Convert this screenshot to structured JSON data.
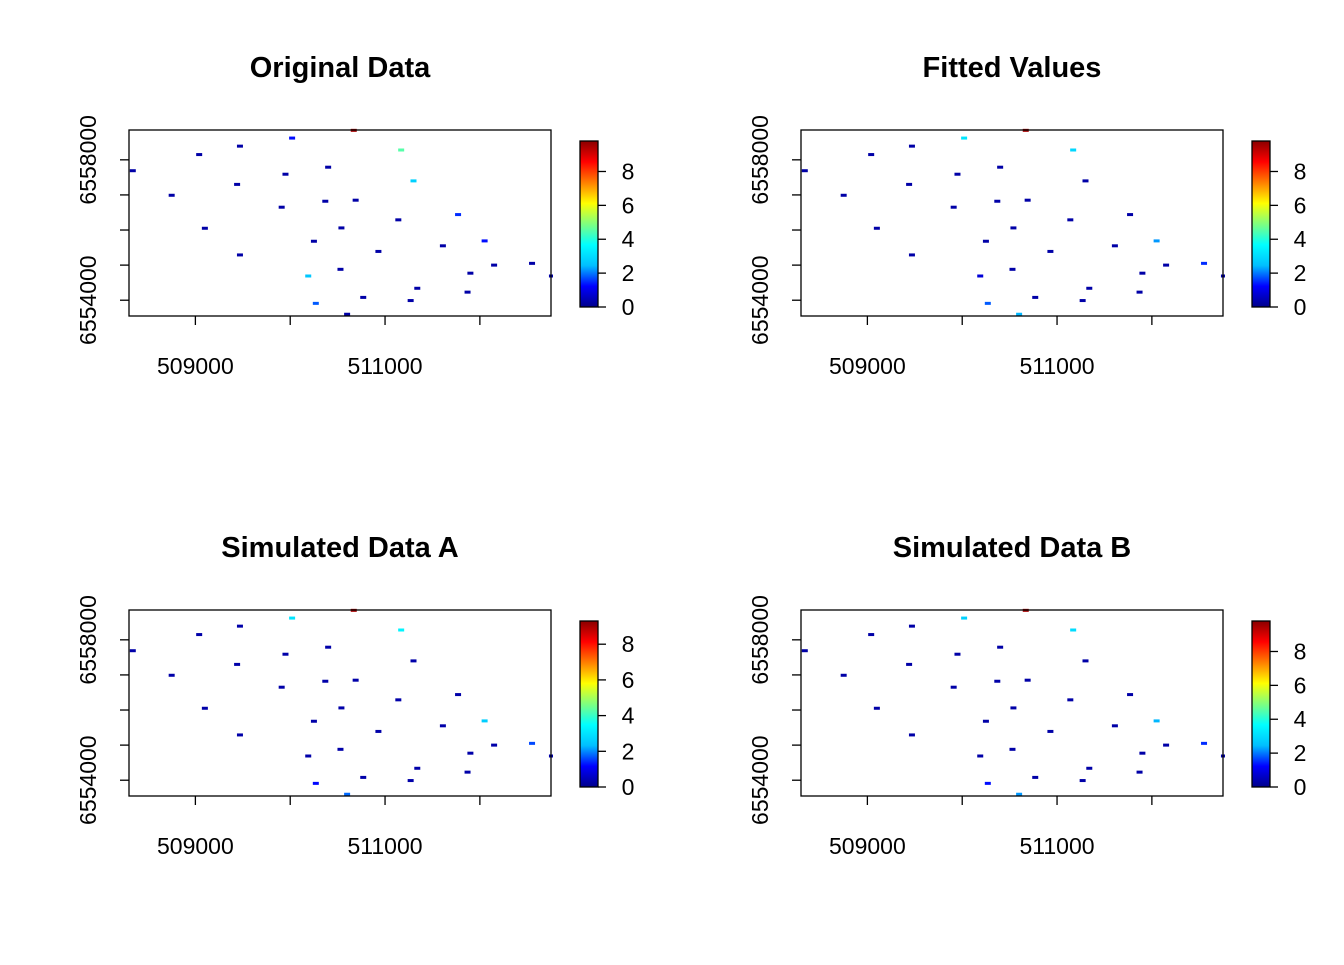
{
  "colorscale": [
    "#00008B",
    "#0000FF",
    "#00BFFF",
    "#00FFFF",
    "#7FFF7F",
    "#FFFF00",
    "#FF7F00",
    "#FF0000",
    "#8B0000"
  ],
  "chart_data": [
    {
      "type": "scatter",
      "title": "Original Data",
      "xlabel": "",
      "ylabel": "",
      "xlim": [
        508300,
        512750
      ],
      "ylim": [
        6553550,
        6558850
      ],
      "xticks": [
        {
          "value": 509000,
          "label": "509000"
        },
        {
          "value": 511000,
          "label": "511000"
        }
      ],
      "xminor": [
        509000,
        510000,
        511000,
        512000
      ],
      "yticks": [
        {
          "value": 6558000,
          "label": "6558000"
        },
        {
          "value": 6554000,
          "label": "6554000"
        }
      ],
      "yminor": [
        6554000,
        6555000,
        6556000,
        6557000,
        6558000
      ],
      "colorbar": {
        "min": 0,
        "max": 9.8,
        "ticks": [
          0,
          2,
          4,
          6,
          8
        ]
      },
      "points": [
        {
          "x": 508340,
          "y": 6557690,
          "v": 0.3
        },
        {
          "x": 508750,
          "y": 6556990,
          "v": 0.3
        },
        {
          "x": 509040,
          "y": 6558150,
          "v": 0.3
        },
        {
          "x": 509100,
          "y": 6556050,
          "v": 0.3
        },
        {
          "x": 509440,
          "y": 6557300,
          "v": 0.3
        },
        {
          "x": 509470,
          "y": 6558390,
          "v": 0.3
        },
        {
          "x": 509470,
          "y": 6555290,
          "v": 0.3
        },
        {
          "x": 509910,
          "y": 6556650,
          "v": 0.3
        },
        {
          "x": 509950,
          "y": 6557590,
          "v": 0.3
        },
        {
          "x": 510020,
          "y": 6558620,
          "v": 1.3
        },
        {
          "x": 510190,
          "y": 6554690,
          "v": 2.6
        },
        {
          "x": 510250,
          "y": 6555680,
          "v": 0.3
        },
        {
          "x": 510270,
          "y": 6553910,
          "v": 1.8
        },
        {
          "x": 510400,
          "y": 6557790,
          "v": 0.3
        },
        {
          "x": 510670,
          "y": 6558840,
          "v": 9.5
        },
        {
          "x": 510690,
          "y": 6556850,
          "v": 0.3
        },
        {
          "x": 510370,
          "y": 6556820,
          "v": 0.3
        },
        {
          "x": 510530,
          "y": 6554880,
          "v": 0.3
        },
        {
          "x": 510540,
          "y": 6556060,
          "v": 0.3
        },
        {
          "x": 510600,
          "y": 6553600,
          "v": 0.3
        },
        {
          "x": 510930,
          "y": 6555390,
          "v": 0.3
        },
        {
          "x": 510770,
          "y": 6554080,
          "v": 0.3
        },
        {
          "x": 511170,
          "y": 6558280,
          "v": 4.5
        },
        {
          "x": 511140,
          "y": 6556290,
          "v": 0.3
        },
        {
          "x": 511300,
          "y": 6557400,
          "v": 2.8
        },
        {
          "x": 511270,
          "y": 6553990,
          "v": 0.3
        },
        {
          "x": 511340,
          "y": 6554340,
          "v": 0.3
        },
        {
          "x": 511610,
          "y": 6555550,
          "v": 0.3
        },
        {
          "x": 511770,
          "y": 6556440,
          "v": 1.5
        },
        {
          "x": 511900,
          "y": 6554770,
          "v": 0.3
        },
        {
          "x": 511870,
          "y": 6554230,
          "v": 0.3
        },
        {
          "x": 512050,
          "y": 6555690,
          "v": 1.3
        },
        {
          "x": 512150,
          "y": 6555000,
          "v": 0.3
        },
        {
          "x": 512550,
          "y": 6555050,
          "v": 0.3
        },
        {
          "x": 512760,
          "y": 6554690,
          "v": 0.3
        }
      ]
    },
    {
      "type": "scatter",
      "title": "Fitted Values",
      "xlabel": "",
      "ylabel": "",
      "xlim": [
        508300,
        512750
      ],
      "ylim": [
        6553550,
        6558850
      ],
      "xticks": [
        {
          "value": 509000,
          "label": "509000"
        },
        {
          "value": 511000,
          "label": "511000"
        }
      ],
      "xminor": [
        509000,
        510000,
        511000,
        512000
      ],
      "yticks": [
        {
          "value": 6558000,
          "label": "6558000"
        },
        {
          "value": 6554000,
          "label": "6554000"
        }
      ],
      "yminor": [
        6554000,
        6555000,
        6556000,
        6557000,
        6558000
      ],
      "colorbar": {
        "min": 0,
        "max": 9.8,
        "ticks": [
          0,
          2,
          4,
          6,
          8
        ]
      },
      "points": [
        {
          "x": 508340,
          "y": 6557690,
          "v": 0.3
        },
        {
          "x": 508750,
          "y": 6556990,
          "v": 0.3
        },
        {
          "x": 509040,
          "y": 6558150,
          "v": 0.3
        },
        {
          "x": 509100,
          "y": 6556050,
          "v": 0.3
        },
        {
          "x": 509440,
          "y": 6557300,
          "v": 0.3
        },
        {
          "x": 509470,
          "y": 6558390,
          "v": 0.3
        },
        {
          "x": 509470,
          "y": 6555290,
          "v": 0.3
        },
        {
          "x": 509910,
          "y": 6556650,
          "v": 0.3
        },
        {
          "x": 509950,
          "y": 6557590,
          "v": 0.3
        },
        {
          "x": 510020,
          "y": 6558620,
          "v": 3.2
        },
        {
          "x": 510190,
          "y": 6554690,
          "v": 0.8
        },
        {
          "x": 510250,
          "y": 6555680,
          "v": 0.3
        },
        {
          "x": 510270,
          "y": 6553910,
          "v": 1.8
        },
        {
          "x": 510400,
          "y": 6557790,
          "v": 0.3
        },
        {
          "x": 510670,
          "y": 6558840,
          "v": 9.5
        },
        {
          "x": 510690,
          "y": 6556850,
          "v": 0.3
        },
        {
          "x": 510370,
          "y": 6556820,
          "v": 0.3
        },
        {
          "x": 510530,
          "y": 6554880,
          "v": 0.3
        },
        {
          "x": 510540,
          "y": 6556060,
          "v": 0.3
        },
        {
          "x": 510600,
          "y": 6553600,
          "v": 2.4
        },
        {
          "x": 510930,
          "y": 6555390,
          "v": 0.3
        },
        {
          "x": 510770,
          "y": 6554080,
          "v": 0.3
        },
        {
          "x": 511170,
          "y": 6558280,
          "v": 2.9
        },
        {
          "x": 511140,
          "y": 6556290,
          "v": 0.3
        },
        {
          "x": 511300,
          "y": 6557400,
          "v": 0.3
        },
        {
          "x": 511270,
          "y": 6553990,
          "v": 0.3
        },
        {
          "x": 511340,
          "y": 6554340,
          "v": 0.3
        },
        {
          "x": 511610,
          "y": 6555550,
          "v": 0.3
        },
        {
          "x": 511770,
          "y": 6556440,
          "v": 0.3
        },
        {
          "x": 511900,
          "y": 6554770,
          "v": 0.3
        },
        {
          "x": 511870,
          "y": 6554230,
          "v": 0.3
        },
        {
          "x": 512050,
          "y": 6555690,
          "v": 2.2
        },
        {
          "x": 512150,
          "y": 6555000,
          "v": 0.3
        },
        {
          "x": 512550,
          "y": 6555050,
          "v": 1.5
        },
        {
          "x": 512760,
          "y": 6554690,
          "v": 0.3
        }
      ]
    },
    {
      "type": "scatter",
      "title": "Simulated Data A",
      "xlabel": "",
      "ylabel": "",
      "xlim": [
        508300,
        512750
      ],
      "ylim": [
        6553550,
        6558850
      ],
      "xticks": [
        {
          "value": 509000,
          "label": "509000"
        },
        {
          "value": 511000,
          "label": "511000"
        }
      ],
      "xminor": [
        509000,
        510000,
        511000,
        512000
      ],
      "yticks": [
        {
          "value": 6558000,
          "label": "6558000"
        },
        {
          "value": 6554000,
          "label": "6554000"
        }
      ],
      "yminor": [
        6554000,
        6555000,
        6556000,
        6557000,
        6558000
      ],
      "colorbar": {
        "min": 0,
        "max": 9.3,
        "ticks": [
          0,
          2,
          4,
          6,
          8
        ]
      },
      "points": [
        {
          "x": 508340,
          "y": 6557690,
          "v": 0.3
        },
        {
          "x": 508750,
          "y": 6556990,
          "v": 0.3
        },
        {
          "x": 509040,
          "y": 6558150,
          "v": 0.3
        },
        {
          "x": 509100,
          "y": 6556050,
          "v": 0.3
        },
        {
          "x": 509440,
          "y": 6557300,
          "v": 0.3
        },
        {
          "x": 509470,
          "y": 6558390,
          "v": 0.3
        },
        {
          "x": 509470,
          "y": 6555290,
          "v": 0.3
        },
        {
          "x": 509910,
          "y": 6556650,
          "v": 0.3
        },
        {
          "x": 509950,
          "y": 6557590,
          "v": 0.3
        },
        {
          "x": 510020,
          "y": 6558620,
          "v": 3.0
        },
        {
          "x": 510190,
          "y": 6554690,
          "v": 0.3
        },
        {
          "x": 510250,
          "y": 6555680,
          "v": 0.3
        },
        {
          "x": 510270,
          "y": 6553910,
          "v": 1.2
        },
        {
          "x": 510400,
          "y": 6557790,
          "v": 0.3
        },
        {
          "x": 510670,
          "y": 6558840,
          "v": 9.0
        },
        {
          "x": 510690,
          "y": 6556850,
          "v": 0.3
        },
        {
          "x": 510370,
          "y": 6556820,
          "v": 0.3
        },
        {
          "x": 510530,
          "y": 6554880,
          "v": 0.3
        },
        {
          "x": 510540,
          "y": 6556060,
          "v": 0.3
        },
        {
          "x": 510600,
          "y": 6553600,
          "v": 1.8
        },
        {
          "x": 510930,
          "y": 6555390,
          "v": 0.3
        },
        {
          "x": 510770,
          "y": 6554080,
          "v": 0.3
        },
        {
          "x": 511170,
          "y": 6558280,
          "v": 3.3
        },
        {
          "x": 511140,
          "y": 6556290,
          "v": 0.3
        },
        {
          "x": 511300,
          "y": 6557400,
          "v": 0.3
        },
        {
          "x": 511270,
          "y": 6553990,
          "v": 0.3
        },
        {
          "x": 511340,
          "y": 6554340,
          "v": 0.3
        },
        {
          "x": 511610,
          "y": 6555550,
          "v": 0.3
        },
        {
          "x": 511770,
          "y": 6556440,
          "v": 0.3
        },
        {
          "x": 511900,
          "y": 6554770,
          "v": 0.3
        },
        {
          "x": 511870,
          "y": 6554230,
          "v": 0.3
        },
        {
          "x": 512050,
          "y": 6555690,
          "v": 2.6
        },
        {
          "x": 512150,
          "y": 6555000,
          "v": 0.3
        },
        {
          "x": 512550,
          "y": 6555050,
          "v": 1.6
        },
        {
          "x": 512760,
          "y": 6554690,
          "v": 0.3
        }
      ]
    },
    {
      "type": "scatter",
      "title": "Simulated Data B",
      "xlabel": "",
      "ylabel": "",
      "xlim": [
        508300,
        512750
      ],
      "ylim": [
        6553550,
        6558850
      ],
      "xticks": [
        {
          "value": 509000,
          "label": "509000"
        },
        {
          "value": 511000,
          "label": "511000"
        }
      ],
      "xminor": [
        509000,
        510000,
        511000,
        512000
      ],
      "yticks": [
        {
          "value": 6558000,
          "label": "6558000"
        },
        {
          "value": 6554000,
          "label": "6554000"
        }
      ],
      "yminor": [
        6554000,
        6555000,
        6556000,
        6557000,
        6558000
      ],
      "colorbar": {
        "min": 0,
        "max": 9.8,
        "ticks": [
          0,
          2,
          4,
          6,
          8
        ]
      },
      "points": [
        {
          "x": 508340,
          "y": 6557690,
          "v": 0.3
        },
        {
          "x": 508750,
          "y": 6556990,
          "v": 0.3
        },
        {
          "x": 509040,
          "y": 6558150,
          "v": 0.3
        },
        {
          "x": 509100,
          "y": 6556050,
          "v": 0.3
        },
        {
          "x": 509440,
          "y": 6557300,
          "v": 0.3
        },
        {
          "x": 509470,
          "y": 6558390,
          "v": 0.3
        },
        {
          "x": 509470,
          "y": 6555290,
          "v": 0.3
        },
        {
          "x": 509910,
          "y": 6556650,
          "v": 0.3
        },
        {
          "x": 509950,
          "y": 6557590,
          "v": 0.3
        },
        {
          "x": 510020,
          "y": 6558620,
          "v": 2.8
        },
        {
          "x": 510190,
          "y": 6554690,
          "v": 0.3
        },
        {
          "x": 510250,
          "y": 6555680,
          "v": 0.3
        },
        {
          "x": 510270,
          "y": 6553910,
          "v": 1.3
        },
        {
          "x": 510400,
          "y": 6557790,
          "v": 0.3
        },
        {
          "x": 510670,
          "y": 6558840,
          "v": 9.5
        },
        {
          "x": 510690,
          "y": 6556850,
          "v": 0.3
        },
        {
          "x": 510370,
          "y": 6556820,
          "v": 0.3
        },
        {
          "x": 510530,
          "y": 6554880,
          "v": 0.3
        },
        {
          "x": 510540,
          "y": 6556060,
          "v": 0.3
        },
        {
          "x": 510600,
          "y": 6553600,
          "v": 2.2
        },
        {
          "x": 510930,
          "y": 6555390,
          "v": 0.3
        },
        {
          "x": 510770,
          "y": 6554080,
          "v": 0.3
        },
        {
          "x": 511170,
          "y": 6558280,
          "v": 3.0
        },
        {
          "x": 511140,
          "y": 6556290,
          "v": 0.3
        },
        {
          "x": 511300,
          "y": 6557400,
          "v": 0.3
        },
        {
          "x": 511270,
          "y": 6553990,
          "v": 0.3
        },
        {
          "x": 511340,
          "y": 6554340,
          "v": 0.3
        },
        {
          "x": 511610,
          "y": 6555550,
          "v": 0.3
        },
        {
          "x": 511770,
          "y": 6556440,
          "v": 0.3
        },
        {
          "x": 511900,
          "y": 6554770,
          "v": 0.3
        },
        {
          "x": 511870,
          "y": 6554230,
          "v": 0.3
        },
        {
          "x": 512050,
          "y": 6555690,
          "v": 2.4
        },
        {
          "x": 512150,
          "y": 6555000,
          "v": 0.3
        },
        {
          "x": 512550,
          "y": 6555050,
          "v": 1.5
        },
        {
          "x": 512760,
          "y": 6554690,
          "v": 0.3
        }
      ]
    }
  ]
}
